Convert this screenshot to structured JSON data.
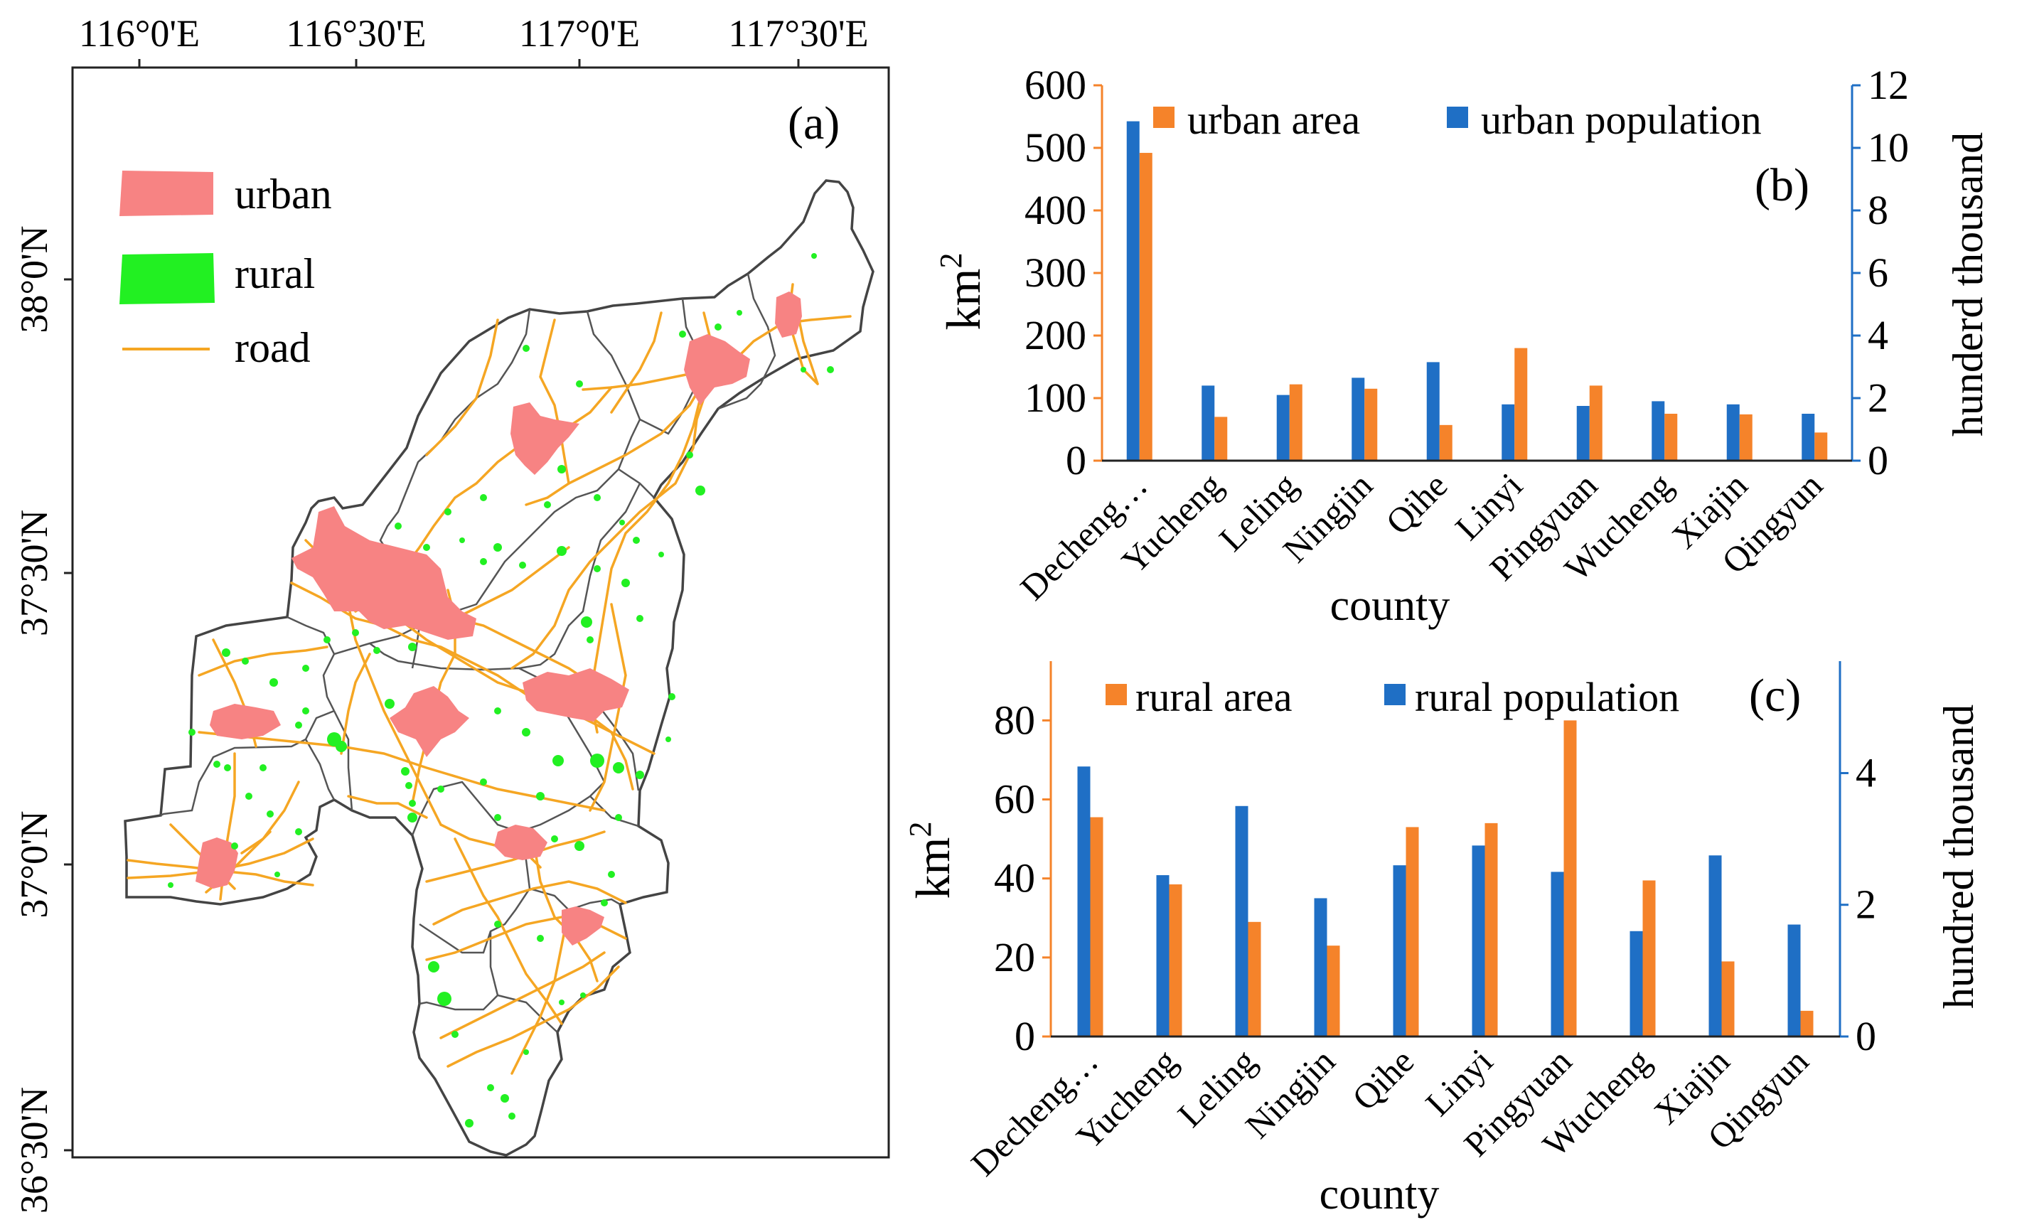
{
  "map": {
    "panel_label": "(a)",
    "lon_ticks": [
      "116°0'E",
      "116°30'E",
      "117°0'E",
      "117°30'E"
    ],
    "lat_ticks": [
      "38°0'N",
      "37°30'N",
      "37°0'N",
      "36°30'N"
    ],
    "legend": [
      {
        "label": "urban",
        "color": "#f78383"
      },
      {
        "label": "rural",
        "color": "#22f022"
      },
      {
        "label": "road",
        "color": "#f5a623"
      }
    ]
  },
  "chart_data": [
    {
      "type": "bar",
      "panel_label": "(b)",
      "xlabel": "county",
      "ylabel_left": "km",
      "ylabel_left_sup": "2",
      "ylabel_right": "hunderd thousand",
      "categories": [
        "Decheng…",
        "Yucheng",
        "Leling",
        "Ningjin",
        "Qihe",
        "Linyi",
        "Pingyuan",
        "Wucheng",
        "Xiajin",
        "Qingyun"
      ],
      "ylim_left": [
        0,
        600
      ],
      "ylim_right": [
        0,
        12
      ],
      "yticks_left": [
        0,
        100,
        200,
        300,
        400,
        500,
        600
      ],
      "yticks_right": [
        0,
        2,
        4,
        6,
        8,
        10,
        12
      ],
      "series": [
        {
          "name": "urban population",
          "axis": "right",
          "color": "#1f6fc5",
          "values": [
            10.85,
            2.4,
            2.1,
            2.65,
            3.15,
            1.8,
            1.75,
            1.9,
            1.8,
            1.5
          ]
        },
        {
          "name": "urban area",
          "axis": "left",
          "color": "#f5832a",
          "values": [
            492,
            70,
            122,
            115,
            57,
            180,
            120,
            75,
            74,
            45
          ]
        }
      ]
    },
    {
      "type": "bar",
      "panel_label": "(c)",
      "xlabel": "county",
      "ylabel_left": "km",
      "ylabel_left_sup": "2",
      "ylabel_right": "hundred thousand",
      "categories": [
        "Decheng…",
        "Yucheng",
        "Leling",
        "Ningjin",
        "Qihe",
        "Linyi",
        "Pingyuan",
        "Wucheng",
        "Xiajin",
        "Qingyun"
      ],
      "ylim_left": [
        0,
        95
      ],
      "ylim_right": [
        0,
        5.7
      ],
      "yticks_left": [
        0,
        20,
        40,
        60,
        80
      ],
      "yticks_right": [
        0,
        2,
        4
      ],
      "series": [
        {
          "name": "rural population",
          "axis": "right",
          "color": "#1f6fc5",
          "values": [
            4.1,
            2.45,
            3.5,
            2.1,
            2.6,
            2.9,
            2.5,
            1.6,
            2.75,
            1.7
          ]
        },
        {
          "name": "rural area",
          "axis": "left",
          "color": "#f5832a",
          "values": [
            55.5,
            38.5,
            29,
            23,
            53,
            54,
            80,
            39.5,
            19,
            6.5
          ]
        }
      ]
    }
  ]
}
